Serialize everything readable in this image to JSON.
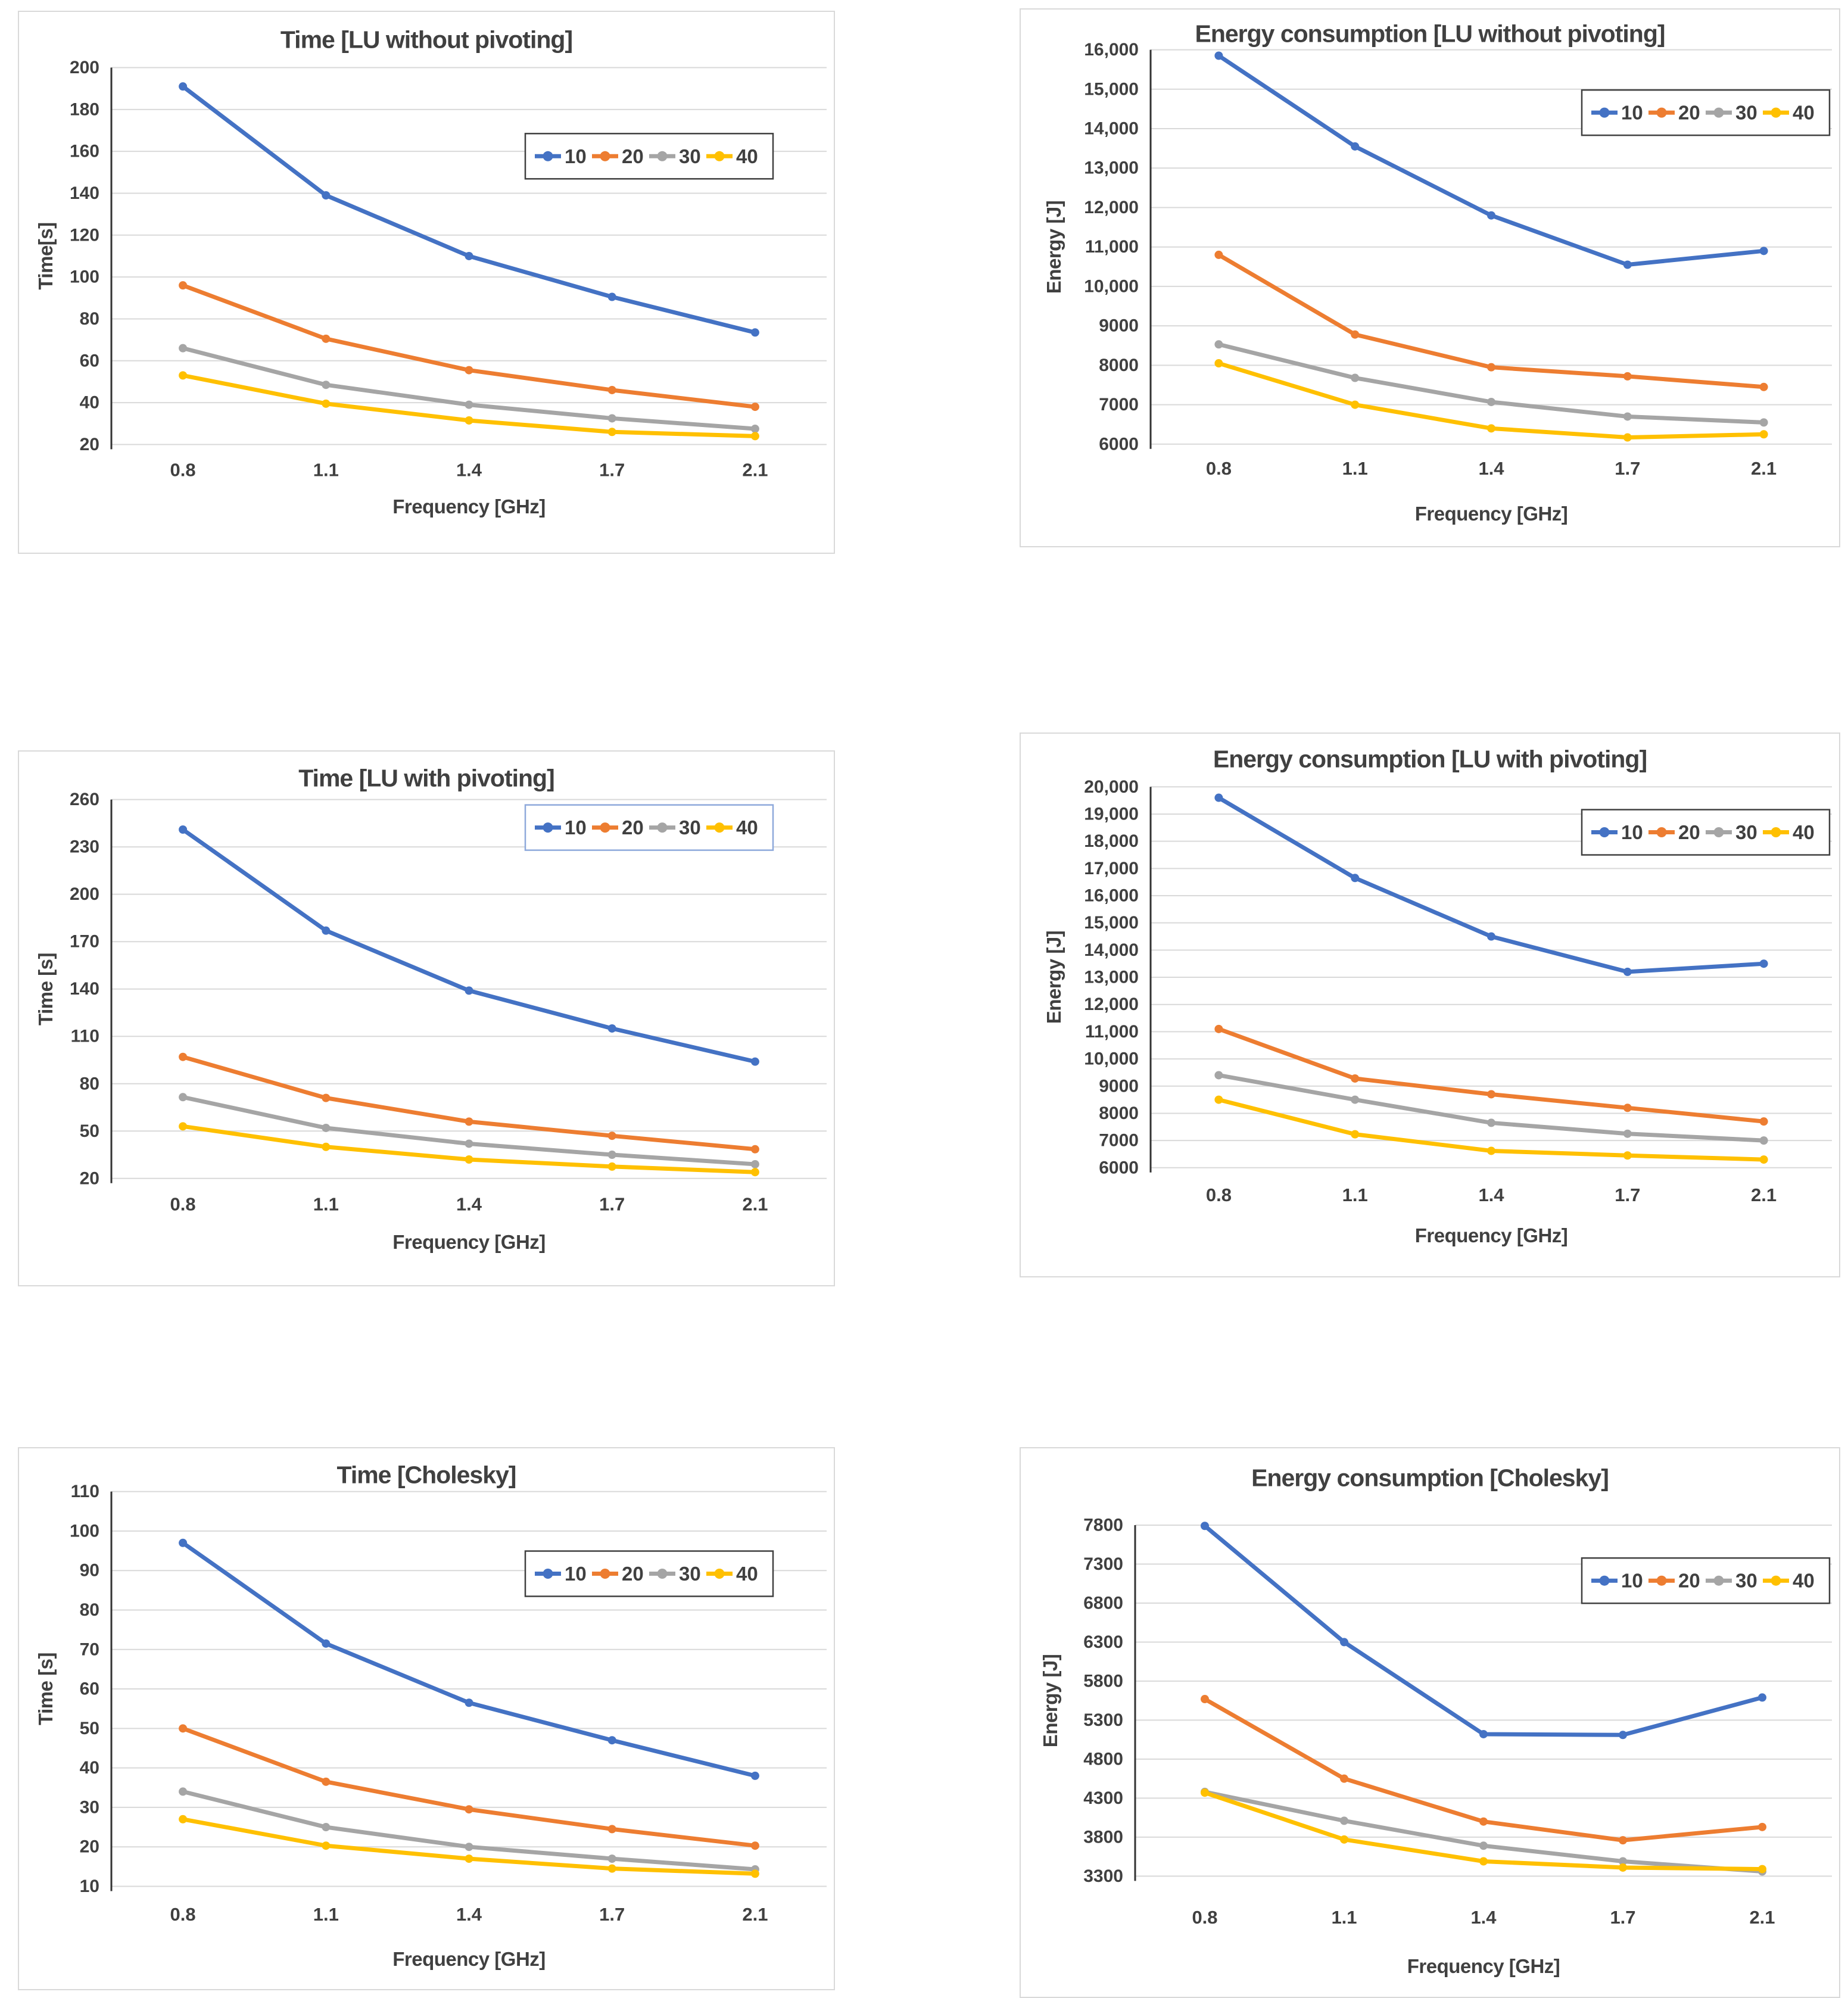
{
  "palette": {
    "series_blue": "#4472C4",
    "series_orange": "#ED7D31",
    "series_gray": "#A5A5A5",
    "series_yellow": "#FFC000",
    "gridline": "#D9D9D9",
    "axis_line": "#333333",
    "text": "#404040",
    "panel_border": "#D9D9D9",
    "legend_border_default": "#404040",
    "legend_border_blue": "#8EA9DB"
  },
  "chart_data": [
    {
      "type": "line",
      "title": "Time [LU without pivoting]",
      "xlabel": "Frequency [GHz]",
      "ylabel": "Time[s]",
      "x_tick_labels": [
        "0.8",
        "1.1",
        "1.4",
        "1.7",
        "2.1"
      ],
      "x": [
        0.8,
        1.1,
        1.4,
        1.7,
        2.1
      ],
      "ylim": [
        20,
        200
      ],
      "y_step": 20,
      "y_tick_labels": [
        "20",
        "40",
        "60",
        "80",
        "100",
        "120",
        "140",
        "160",
        "180",
        "200"
      ],
      "grid": true,
      "legend_position": "top-right",
      "series": [
        {
          "name": "10",
          "color": "#4472C4",
          "values": [
            191,
            139,
            110,
            90.5,
            73.5
          ]
        },
        {
          "name": "20",
          "color": "#ED7D31",
          "values": [
            96,
            70.5,
            55.5,
            46,
            38
          ]
        },
        {
          "name": "30",
          "color": "#A5A5A5",
          "values": [
            66,
            48.5,
            39,
            32.5,
            27.5
          ]
        },
        {
          "name": "40",
          "color": "#FFC000",
          "values": [
            53,
            39.5,
            31.5,
            26,
            24
          ]
        }
      ]
    },
    {
      "type": "line",
      "title": "Energy consumption [LU without pivoting]",
      "xlabel": "Frequency [GHz]",
      "ylabel": "Energy [J]",
      "x_tick_labels": [
        "0.8",
        "1.1",
        "1.4",
        "1.7",
        "2.1"
      ],
      "x": [
        0.8,
        1.1,
        1.4,
        1.7,
        2.1
      ],
      "ylim": [
        6000,
        16000
      ],
      "y_step": 1000,
      "y_tick_labels": [
        "6000",
        "7000",
        "8000",
        "9000",
        "10,000",
        "11,000",
        "12,000",
        "13,000",
        "14,000",
        "15,000",
        "16,000"
      ],
      "grid": true,
      "legend_position": "top-right",
      "series": [
        {
          "name": "10",
          "color": "#4472C4",
          "values": [
            15850,
            13550,
            11800,
            10550,
            10900
          ]
        },
        {
          "name": "20",
          "color": "#ED7D31",
          "values": [
            10800,
            8780,
            7950,
            7720,
            7450
          ]
        },
        {
          "name": "30",
          "color": "#A5A5A5",
          "values": [
            8530,
            7680,
            7070,
            6700,
            6550
          ]
        },
        {
          "name": "40",
          "color": "#FFC000",
          "values": [
            8050,
            7000,
            6400,
            6170,
            6250
          ]
        }
      ]
    },
    {
      "type": "line",
      "title": "Time [LU with pivoting]",
      "xlabel": "Frequency [GHz]",
      "ylabel": "Time [s]",
      "x_tick_labels": [
        "0.8",
        "1.1",
        "1.4",
        "1.7",
        "2.1"
      ],
      "x": [
        0.8,
        1.1,
        1.4,
        1.7,
        2.1
      ],
      "ylim": [
        20,
        260
      ],
      "y_step": 30,
      "y_tick_labels": [
        "20",
        "50",
        "80",
        "110",
        "140",
        "170",
        "200",
        "230",
        "260"
      ],
      "grid": true,
      "legend_position": "top-right",
      "series": [
        {
          "name": "10",
          "color": "#4472C4",
          "values": [
            241,
            177,
            139,
            115,
            94
          ]
        },
        {
          "name": "20",
          "color": "#ED7D31",
          "values": [
            97,
            71,
            56,
            47,
            38.5
          ]
        },
        {
          "name": "30",
          "color": "#A5A5A5",
          "values": [
            71.5,
            52,
            42,
            35,
            29
          ]
        },
        {
          "name": "40",
          "color": "#FFC000",
          "values": [
            53,
            40,
            32,
            27.5,
            24
          ]
        }
      ]
    },
    {
      "type": "line",
      "title": "Energy consumption [LU with pivoting]",
      "xlabel": "Frequency [GHz]",
      "ylabel": "Energy [J]",
      "x_tick_labels": [
        "0.8",
        "1.1",
        "1.4",
        "1.7",
        "2.1"
      ],
      "x": [
        0.8,
        1.1,
        1.4,
        1.7,
        2.1
      ],
      "ylim": [
        6000,
        20000
      ],
      "y_step": 1000,
      "y_tick_labels": [
        "6000",
        "7000",
        "8000",
        "9000",
        "10,000",
        "11,000",
        "12,000",
        "13,000",
        "14,000",
        "15,000",
        "16,000",
        "17,000",
        "18,000",
        "19,000",
        "20,000"
      ],
      "grid": true,
      "legend_position": "top-right",
      "series": [
        {
          "name": "10",
          "color": "#4472C4",
          "values": [
            19600,
            16650,
            14500,
            13200,
            13500
          ]
        },
        {
          "name": "20",
          "color": "#ED7D31",
          "values": [
            11100,
            9280,
            8700,
            8200,
            7700
          ]
        },
        {
          "name": "30",
          "color": "#A5A5A5",
          "values": [
            9400,
            8500,
            7650,
            7250,
            7000
          ]
        },
        {
          "name": "40",
          "color": "#FFC000",
          "values": [
            8500,
            7230,
            6620,
            6450,
            6300
          ]
        }
      ]
    },
    {
      "type": "line",
      "title": "Time [Cholesky]",
      "xlabel": "Frequency [GHz]",
      "ylabel": "Time [s]",
      "x_tick_labels": [
        "0.8",
        "1.1",
        "1.4",
        "1.7",
        "2.1"
      ],
      "x": [
        0.8,
        1.1,
        1.4,
        1.7,
        2.1
      ],
      "ylim": [
        10,
        110
      ],
      "y_step": 10,
      "y_tick_labels": [
        "10",
        "20",
        "30",
        "40",
        "50",
        "60",
        "70",
        "80",
        "90",
        "100",
        "110"
      ],
      "grid": true,
      "legend_position": "top-right",
      "series": [
        {
          "name": "10",
          "color": "#4472C4",
          "values": [
            97,
            71.5,
            56.5,
            47,
            38
          ]
        },
        {
          "name": "20",
          "color": "#ED7D31",
          "values": [
            50,
            36.5,
            29.5,
            24.5,
            20.3
          ]
        },
        {
          "name": "30",
          "color": "#A5A5A5",
          "values": [
            34,
            25,
            20,
            17,
            14.3
          ]
        },
        {
          "name": "40",
          "color": "#FFC000",
          "values": [
            27,
            20.3,
            17,
            14.5,
            13.2
          ]
        }
      ]
    },
    {
      "type": "line",
      "title": "Energy consumption [Cholesky]",
      "xlabel": "Frequency [GHz]",
      "ylabel": "Energy [J]",
      "x_tick_labels": [
        "0.8",
        "1.1",
        "1.4",
        "1.7",
        "2.1"
      ],
      "x": [
        0.8,
        1.1,
        1.4,
        1.7,
        2.1
      ],
      "ylim": [
        3300,
        7800
      ],
      "y_step": 500,
      "y_tick_labels": [
        "3300",
        "3800",
        "4300",
        "4800",
        "5300",
        "5800",
        "6300",
        "6800",
        "7300",
        "7800"
      ],
      "grid": true,
      "legend_position": "top-right",
      "series": [
        {
          "name": "10",
          "color": "#4472C4",
          "values": [
            7790,
            6300,
            5120,
            5110,
            5590
          ]
        },
        {
          "name": "20",
          "color": "#ED7D31",
          "values": [
            5570,
            4550,
            4000,
            3760,
            3930
          ]
        },
        {
          "name": "30",
          "color": "#A5A5A5",
          "values": [
            4380,
            4010,
            3690,
            3490,
            3360
          ]
        },
        {
          "name": "40",
          "color": "#FFC000",
          "values": [
            4370,
            3770,
            3490,
            3410,
            3390
          ]
        }
      ]
    }
  ]
}
